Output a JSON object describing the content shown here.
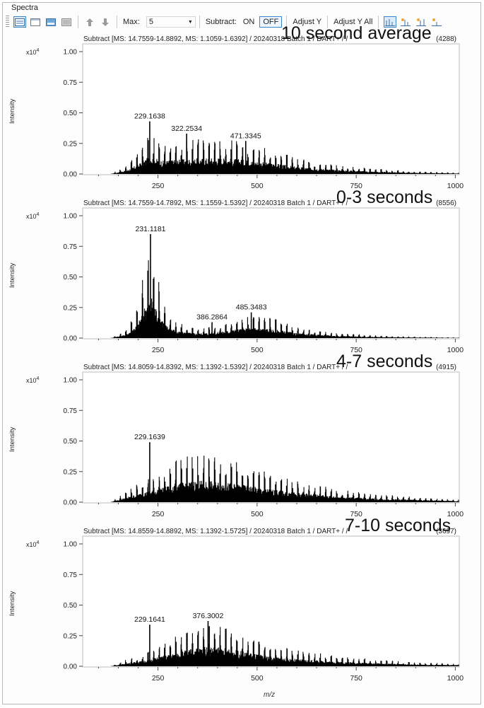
{
  "group_title": "Spectra",
  "toolbar": {
    "max_label": "Max:",
    "max_value": "5",
    "subtract_label": "Subtract:",
    "on_label": "ON",
    "off_label": "OFF",
    "adjust_y_label": "Adjust Y",
    "adjust_y_all_label": "Adjust Y All",
    "icons": [
      "layout-list-icon",
      "layout-single-icon",
      "layout-image-icon",
      "layout-grid-icon",
      "arrow-up-icon",
      "arrow-down-icon",
      "dropdown-arrow-icon",
      "peak-label-icon",
      "peak-mass-icon",
      "peak-mass-intensity-icon",
      "peak-annotation-icon"
    ]
  },
  "panels": [
    {
      "header": "Subtract [MS: 14.7559-14.8892, MS: 1.1059-1.6392] / 20240318 Batch 1 / DART+ / /",
      "count": "(4288)",
      "overlay": "10 second average"
    },
    {
      "header": "Subtract [MS: 14.7559-14.7892, MS: 1.1559-1.5392] / 20240318 Batch 1 / DART+ / /",
      "count": "(8556)",
      "overlay": "0-3 seconds"
    },
    {
      "header": "Subtract [MS: 14.8059-14.8392, MS: 1.1392-1.5392] / 20240318 Batch 1 / DART+ / /",
      "count": "(4915)",
      "overlay": "4-7 seconds"
    },
    {
      "header": "Subtract [MS: 14.8559-14.8892, MS: 1.1392-1.5725] / 20240318 Batch 1 / DART+ / /",
      "count": "(3697)",
      "overlay": "7-10 seconds"
    }
  ],
  "axes": {
    "ylabel": "Intensity",
    "xlabel": "m/z",
    "exponent_base": "x10",
    "exponent_power": "4",
    "yticks": [
      "1.00",
      "0.75",
      "0.50",
      "0.25",
      "0.00"
    ],
    "xticks": [
      "250",
      "500",
      "750",
      "1000"
    ]
  },
  "chart_data": [
    {
      "type": "line",
      "xlabel": "m/z",
      "ylabel": "Intensity",
      "xlim": [
        60,
        1010
      ],
      "ylim": [
        0,
        1.0
      ],
      "peaks": [
        {
          "mz": 229.1638,
          "y": 0.43,
          "label": "229.1638"
        },
        {
          "mz": 322.2534,
          "y": 0.33,
          "label": "322.2534"
        },
        {
          "mz": 471.3345,
          "y": 0.27,
          "label": "471.3345"
        }
      ],
      "envelope": {
        "x": [
          130,
          170,
          200,
          230,
          260,
          300,
          350,
          400,
          450,
          500,
          550,
          600,
          700,
          800,
          900,
          1000
        ],
        "y": [
          0,
          0.06,
          0.16,
          0.3,
          0.22,
          0.24,
          0.26,
          0.27,
          0.25,
          0.21,
          0.17,
          0.12,
          0.07,
          0.04,
          0.02,
          0.01
        ]
      }
    },
    {
      "type": "line",
      "xlabel": "m/z",
      "ylabel": "Intensity",
      "xlim": [
        60,
        1010
      ],
      "ylim": [
        0,
        1.0
      ],
      "peaks": [
        {
          "mz": 231.1181,
          "y": 0.85,
          "label": "231.1181"
        },
        {
          "mz": 386.2864,
          "y": 0.13,
          "label": "386.2864"
        },
        {
          "mz": 485.3483,
          "y": 0.21,
          "label": "485.3483"
        }
      ],
      "envelope": {
        "x": [
          130,
          170,
          200,
          220,
          235,
          250,
          270,
          300,
          350,
          400,
          450,
          500,
          550,
          600,
          700,
          800,
          900,
          1000
        ],
        "y": [
          0,
          0.06,
          0.25,
          0.6,
          0.68,
          0.45,
          0.22,
          0.11,
          0.08,
          0.1,
          0.15,
          0.18,
          0.14,
          0.08,
          0.04,
          0.02,
          0.01,
          0.005
        ]
      }
    },
    {
      "type": "line",
      "xlabel": "m/z",
      "ylabel": "Intensity",
      "xlim": [
        60,
        1010
      ],
      "ylim": [
        0,
        1.0
      ],
      "peaks": [
        {
          "mz": 229.1639,
          "y": 0.49,
          "label": "229.1639"
        }
      ],
      "envelope": {
        "x": [
          130,
          170,
          200,
          250,
          300,
          350,
          400,
          450,
          500,
          550,
          600,
          700,
          800,
          900,
          1000
        ],
        "y": [
          0,
          0.08,
          0.14,
          0.22,
          0.32,
          0.36,
          0.34,
          0.3,
          0.25,
          0.2,
          0.16,
          0.1,
          0.06,
          0.04,
          0.02
        ]
      }
    },
    {
      "type": "line",
      "xlabel": "m/z",
      "ylabel": "Intensity",
      "xlim": [
        60,
        1010
      ],
      "ylim": [
        0,
        1.0
      ],
      "peaks": [
        {
          "mz": 229.1641,
          "y": 0.34,
          "label": "229.1641"
        },
        {
          "mz": 376.3002,
          "y": 0.37,
          "label": "376.3002"
        }
      ],
      "envelope": {
        "x": [
          130,
          170,
          220,
          280,
          340,
          380,
          420,
          460,
          500,
          550,
          600,
          700,
          800,
          900,
          1000
        ],
        "y": [
          0,
          0.05,
          0.1,
          0.2,
          0.3,
          0.33,
          0.3,
          0.25,
          0.2,
          0.15,
          0.12,
          0.08,
          0.05,
          0.03,
          0.02
        ]
      }
    }
  ],
  "colors": {
    "accent": "#3b86c9",
    "trace": "#000000",
    "frame": "#b9b9b9"
  }
}
